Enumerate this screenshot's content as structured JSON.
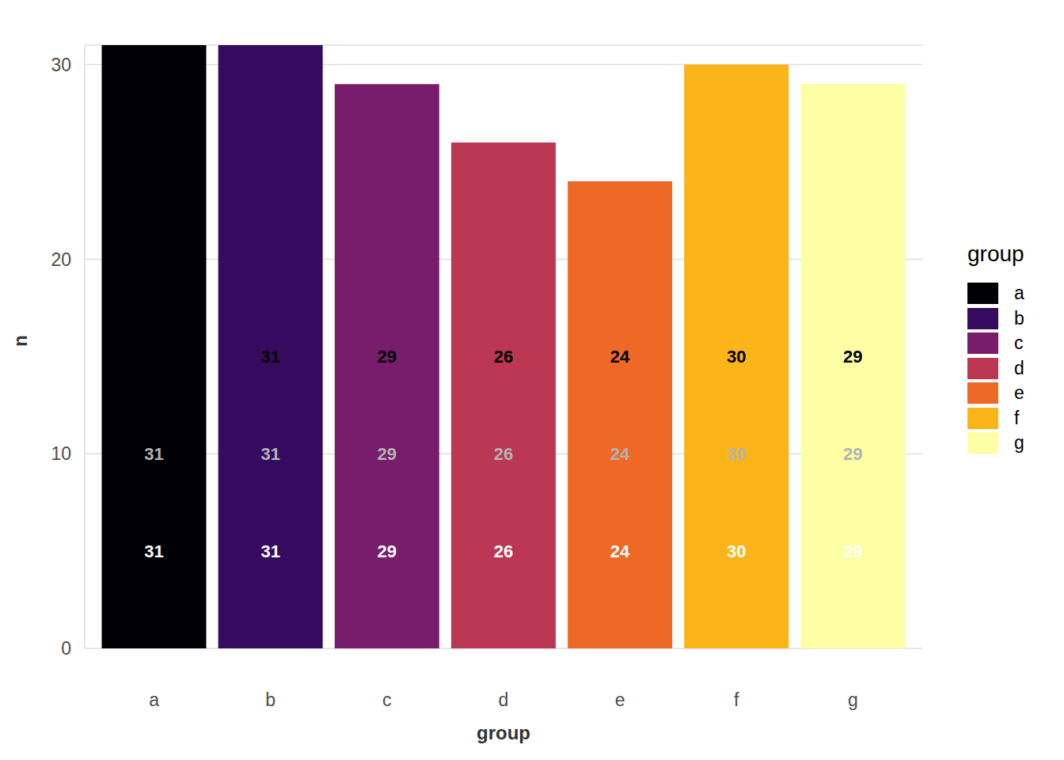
{
  "chart_data": {
    "type": "bar",
    "x_label": "group",
    "y_label": "n",
    "legend_title": "group",
    "categories": [
      "a",
      "b",
      "c",
      "d",
      "e",
      "f",
      "g"
    ],
    "values": [
      31,
      31,
      29,
      26,
      24,
      30,
      29
    ],
    "colors": [
      "#000004",
      "#360A5E",
      "#781C6D",
      "#BB3754",
      "#ED6925",
      "#FCB519",
      "#FCFFA4"
    ],
    "ylim": [
      0,
      31
    ],
    "yticks": [
      0,
      10,
      20,
      30
    ],
    "grid": true,
    "legend": "right",
    "data_labels": true
  }
}
